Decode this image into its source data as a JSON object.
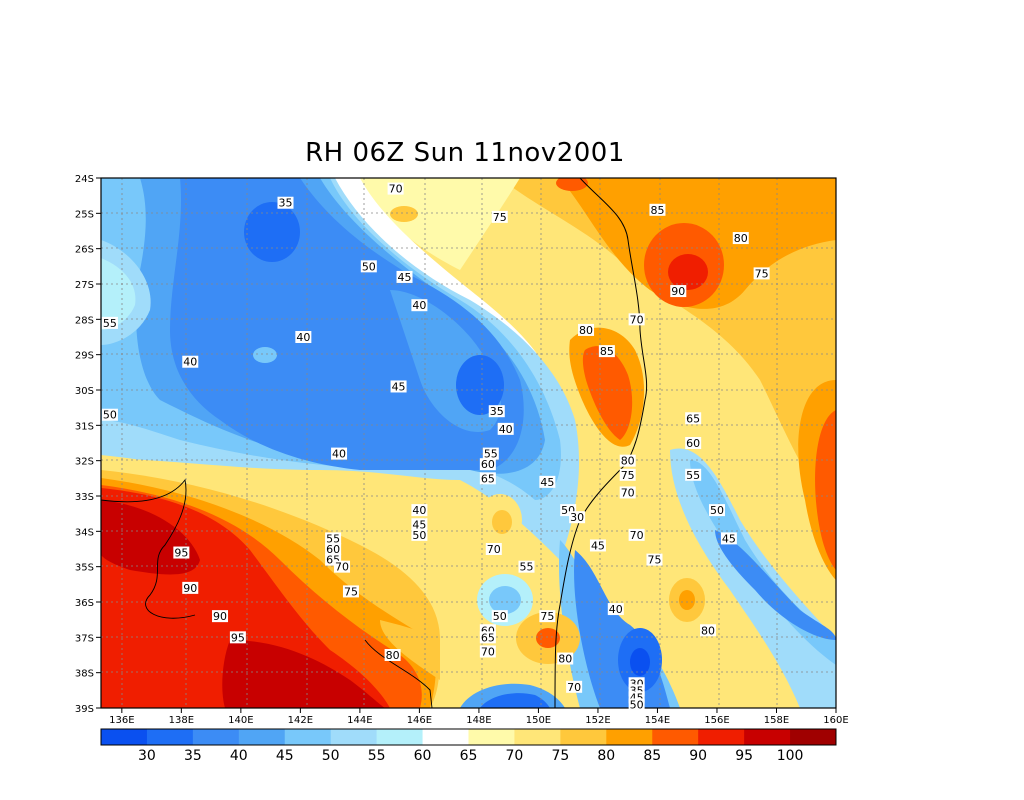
{
  "title": "RH 06Z Sun 11nov2001",
  "lat_labels": [
    "24S",
    "25S",
    "26S",
    "27S",
    "28S",
    "29S",
    "30S",
    "31S",
    "32S",
    "33S",
    "34S",
    "35S",
    "36S",
    "37S",
    "38S",
    "39S"
  ],
  "lon_labels": [
    "136E",
    "138E",
    "140E",
    "142E",
    "144E",
    "146E",
    "148E",
    "150E",
    "152E",
    "154E",
    "156E",
    "158E",
    "160E"
  ],
  "colorbar": {
    "ticks": [
      "30",
      "35",
      "40",
      "45",
      "50",
      "55",
      "60",
      "65",
      "70",
      "75",
      "80",
      "85",
      "90",
      "95",
      "100"
    ],
    "colors": [
      "#0a50f0",
      "#1e6ef5",
      "#3c8cf5",
      "#50a5f5",
      "#78c8fa",
      "#a0dcfa",
      "#b4f0fa",
      "#ffffff",
      "#fffaaa",
      "#ffe678",
      "#ffc83c",
      "#ffa000",
      "#ff5a00",
      "#f01e00",
      "#c80000",
      "#a00000"
    ]
  },
  "contour_labels": [
    {
      "text": "70",
      "lon": 145.2,
      "lat": -24.3
    },
    {
      "text": "75",
      "lon": 148.7,
      "lat": -25.1
    },
    {
      "text": "85",
      "lon": 154.0,
      "lat": -24.9
    },
    {
      "text": "80",
      "lon": 156.8,
      "lat": -25.7
    },
    {
      "text": "75",
      "lon": 157.5,
      "lat": -26.7
    },
    {
      "text": "90",
      "lon": 154.7,
      "lat": -27.2
    },
    {
      "text": "35",
      "lon": 141.5,
      "lat": -24.7
    },
    {
      "text": "50",
      "lon": 144.3,
      "lat": -26.5
    },
    {
      "text": "45",
      "lon": 145.5,
      "lat": -26.8
    },
    {
      "text": "40",
      "lon": 146.0,
      "lat": -27.6
    },
    {
      "text": "40",
      "lon": 142.1,
      "lat": -28.5
    },
    {
      "text": "55",
      "lon": 135.6,
      "lat": -28.1
    },
    {
      "text": "40",
      "lon": 138.3,
      "lat": -29.2
    },
    {
      "text": "80",
      "lon": 151.6,
      "lat": -28.3
    },
    {
      "text": "70",
      "lon": 153.3,
      "lat": -28.0
    },
    {
      "text": "85",
      "lon": 152.3,
      "lat": -28.9
    },
    {
      "text": "45",
      "lon": 145.3,
      "lat": -29.9
    },
    {
      "text": "35",
      "lon": 148.6,
      "lat": -30.6
    },
    {
      "text": "40",
      "lon": 148.9,
      "lat": -31.1
    },
    {
      "text": "50",
      "lon": 135.6,
      "lat": -30.7
    },
    {
      "text": "65",
      "lon": 155.2,
      "lat": -30.8
    },
    {
      "text": "60",
      "lon": 155.2,
      "lat": -31.5
    },
    {
      "text": "40",
      "lon": 143.3,
      "lat": -31.8
    },
    {
      "text": "55",
      "lon": 148.4,
      "lat": -31.8
    },
    {
      "text": "60",
      "lon": 148.3,
      "lat": -32.1
    },
    {
      "text": "65",
      "lon": 148.3,
      "lat": -32.5
    },
    {
      "text": "80",
      "lon": 153.0,
      "lat": -32.0
    },
    {
      "text": "75",
      "lon": 153.0,
      "lat": -32.4
    },
    {
      "text": "70",
      "lon": 153.0,
      "lat": -32.9
    },
    {
      "text": "45",
      "lon": 150.3,
      "lat": -32.6
    },
    {
      "text": "55",
      "lon": 155.2,
      "lat": -32.4
    },
    {
      "text": "50",
      "lon": 151.0,
      "lat": -33.4
    },
    {
      "text": "30",
      "lon": 151.3,
      "lat": -33.6
    },
    {
      "text": "50",
      "lon": 156.0,
      "lat": -33.4
    },
    {
      "text": "40",
      "lon": 146.0,
      "lat": -33.4
    },
    {
      "text": "45",
      "lon": 146.0,
      "lat": -33.8
    },
    {
      "text": "50",
      "lon": 146.0,
      "lat": -34.1
    },
    {
      "text": "55",
      "lon": 143.1,
      "lat": -34.2
    },
    {
      "text": "60",
      "lon": 143.1,
      "lat": -34.5
    },
    {
      "text": "65",
      "lon": 143.1,
      "lat": -34.8
    },
    {
      "text": "70",
      "lon": 143.4,
      "lat": -35.0
    },
    {
      "text": "70",
      "lon": 148.5,
      "lat": -34.5
    },
    {
      "text": "45",
      "lon": 152.0,
      "lat": -34.4
    },
    {
      "text": "70",
      "lon": 153.3,
      "lat": -34.1
    },
    {
      "text": "45",
      "lon": 156.4,
      "lat": -34.2
    },
    {
      "text": "75",
      "lon": 153.9,
      "lat": -34.8
    },
    {
      "text": "55",
      "lon": 149.6,
      "lat": -35.0
    },
    {
      "text": "95",
      "lon": 138.0,
      "lat": -34.6
    },
    {
      "text": "90",
      "lon": 138.3,
      "lat": -35.6
    },
    {
      "text": "75",
      "lon": 143.7,
      "lat": -35.7
    },
    {
      "text": "90",
      "lon": 139.3,
      "lat": -36.4
    },
    {
      "text": "40",
      "lon": 152.6,
      "lat": -36.2
    },
    {
      "text": "50",
      "lon": 148.7,
      "lat": -36.4
    },
    {
      "text": "75",
      "lon": 150.3,
      "lat": -36.4
    },
    {
      "text": "60",
      "lon": 148.3,
      "lat": -36.8
    },
    {
      "text": "95",
      "lon": 139.9,
      "lat": -37.0
    },
    {
      "text": "65",
      "lon": 148.3,
      "lat": -37.0
    },
    {
      "text": "70",
      "lon": 148.3,
      "lat": -37.4
    },
    {
      "text": "80",
      "lon": 145.1,
      "lat": -37.5
    },
    {
      "text": "80",
      "lon": 150.9,
      "lat": -37.6
    },
    {
      "text": "80",
      "lon": 155.7,
      "lat": -36.8
    },
    {
      "text": "70",
      "lon": 151.2,
      "lat": -38.4
    },
    {
      "text": "30",
      "lon": 153.3,
      "lat": -38.3
    },
    {
      "text": "35",
      "lon": 153.3,
      "lat": -38.5
    },
    {
      "text": "45",
      "lon": 153.3,
      "lat": -38.7
    },
    {
      "text": "50",
      "lon": 153.3,
      "lat": -38.9
    }
  ]
}
